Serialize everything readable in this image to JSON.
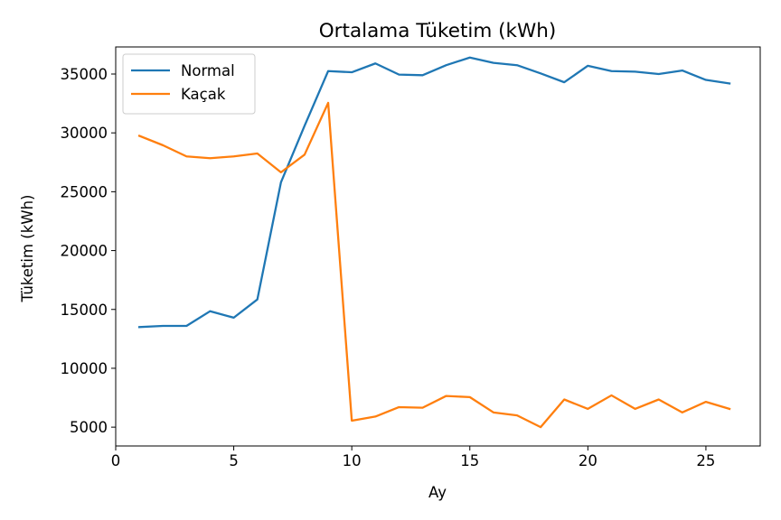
{
  "chart_data": {
    "type": "line",
    "title": "Ortalama Tüketim (kWh)",
    "xlabel": "Ay",
    "ylabel": "Tüketim (kWh)",
    "xlim": [
      0,
      27.3
    ],
    "ylim": [
      3400,
      37300
    ],
    "xticks": [
      0,
      5,
      10,
      15,
      20,
      25
    ],
    "yticks": [
      5000,
      10000,
      15000,
      20000,
      25000,
      30000,
      35000
    ],
    "grid": false,
    "legend_position": "top-left",
    "x": [
      1,
      2,
      3,
      4,
      5,
      6,
      7,
      8,
      9,
      10,
      11,
      12,
      13,
      14,
      15,
      16,
      17,
      18,
      19,
      20,
      21,
      22,
      23,
      24,
      25,
      26
    ],
    "series": [
      {
        "name": "Normal",
        "color": "#1f77b4",
        "values": [
          13500,
          13600,
          13600,
          14850,
          14300,
          15850,
          25800,
          30600,
          35250,
          35150,
          35900,
          34950,
          34900,
          35750,
          36400,
          35950,
          35750,
          35050,
          34300,
          35700,
          35250,
          35200,
          35000,
          35300,
          34500,
          34200
        ]
      },
      {
        "name": "Kaçak",
        "color": "#ff7f0e",
        "values": [
          29750,
          28950,
          28000,
          27850,
          28000,
          28250,
          26650,
          28150,
          32550,
          5550,
          5900,
          6700,
          6650,
          7650,
          7550,
          6250,
          6000,
          5000,
          7350,
          6550,
          7700,
          6550,
          7350,
          6250,
          7150,
          6550
        ]
      }
    ]
  }
}
